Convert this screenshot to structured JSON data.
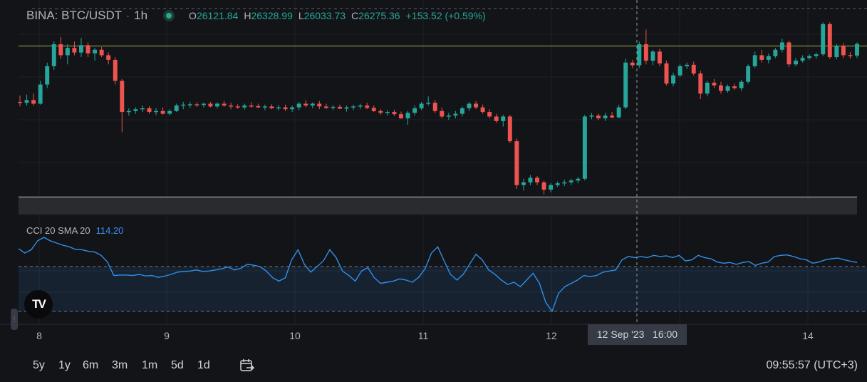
{
  "legend": {
    "symbol": "BINA: BTC/USDT",
    "separator": "·",
    "timeframe": "1h",
    "open_label": "O",
    "open": "26121.84",
    "high_label": "H",
    "high": "26328.99",
    "low_label": "L",
    "low": "26033.73",
    "close_label": "C",
    "close": "26275.36",
    "change": "+153.52 (+0.59%)"
  },
  "indicator": {
    "name": "CCI 20 SMA 20",
    "value": "114.20"
  },
  "logo": {
    "text": "TV"
  },
  "x_axis": {
    "labels": [
      "8",
      "9",
      "10",
      "11",
      "12",
      "14"
    ]
  },
  "crosshair": {
    "date": "12 Sep '23",
    "time": "16:00"
  },
  "bottom": {
    "ranges": [
      "5y",
      "1y",
      "6m",
      "3m",
      "1m",
      "5d",
      "1d"
    ],
    "clock": "09:55:57 (UTC+3)"
  },
  "colors": {
    "up": "#26a69a",
    "down": "#ef5350",
    "cci": "#2f8fea",
    "price_line": "#d4e157",
    "background": "#131417"
  },
  "icons": {
    "live": "live-dot-icon",
    "calendar": "calendar-go-to-icon",
    "handle": "panel-handle-icon"
  },
  "chart_data": [
    {
      "type": "candlestick",
      "title": "BINA: BTC/USDT 1h",
      "x": [
        "8",
        "9",
        "10",
        "11",
        "12",
        "14"
      ],
      "ohlc_last": {
        "open": 26121.84,
        "high": 26328.99,
        "low": 26033.73,
        "close": 26275.36
      },
      "candles": [
        [
          25945,
          25980,
          25920,
          25940
        ],
        [
          25940,
          25985,
          25925,
          25955
        ],
        [
          25955,
          25990,
          25925,
          25935
        ],
        [
          25935,
          26060,
          25930,
          26040
        ],
        [
          26040,
          26160,
          26020,
          26140
        ],
        [
          26140,
          26275,
          26120,
          26260
        ],
        [
          26260,
          26300,
          26180,
          26200
        ],
        [
          26200,
          26260,
          26150,
          26240
        ],
        [
          26240,
          26275,
          26200,
          26215
        ],
        [
          26215,
          26295,
          26190,
          26255
        ],
        [
          26255,
          26270,
          26190,
          26210
        ],
        [
          26210,
          26240,
          26170,
          26230
        ],
        [
          26230,
          26245,
          26190,
          26200
        ],
        [
          26200,
          26215,
          26150,
          26175
        ],
        [
          26175,
          26190,
          26040,
          26060
        ],
        [
          26060,
          26070,
          25780,
          25890
        ],
        [
          25890,
          25910,
          25870,
          25895
        ],
        [
          25895,
          25915,
          25880,
          25905
        ],
        [
          25905,
          25925,
          25890,
          25910
        ],
        [
          25910,
          25922,
          25880,
          25890
        ],
        [
          25890,
          25910,
          25872,
          25895
        ],
        [
          25895,
          25915,
          25875,
          25880
        ],
        [
          25880,
          25905,
          25870,
          25895
        ],
        [
          25895,
          25935,
          25890,
          25925
        ],
        [
          25925,
          25945,
          25905,
          25930
        ],
        [
          25930,
          25945,
          25912,
          25932
        ],
        [
          25932,
          25942,
          25918,
          25928
        ],
        [
          25928,
          25940,
          25915,
          25935
        ],
        [
          25935,
          25945,
          25915,
          25920
        ],
        [
          25920,
          25942,
          25910,
          25935
        ],
        [
          25935,
          25950,
          25918,
          25925
        ],
        [
          25925,
          25940,
          25905,
          25920
        ],
        [
          25920,
          25932,
          25908,
          25915
        ],
        [
          25915,
          25935,
          25903,
          25925
        ],
        [
          25925,
          25942,
          25912,
          25922
        ],
        [
          25922,
          25935,
          25910,
          25915
        ],
        [
          25915,
          25930,
          25900,
          25920
        ],
        [
          25920,
          25932,
          25905,
          25910
        ],
        [
          25910,
          25928,
          25898,
          25915
        ],
        [
          25915,
          25930,
          25895,
          25905
        ],
        [
          25905,
          25925,
          25890,
          25915
        ],
        [
          25915,
          25945,
          25900,
          25935
        ],
        [
          25935,
          25955,
          25915,
          25925
        ],
        [
          25925,
          25942,
          25910,
          25935
        ],
        [
          25935,
          25950,
          25905,
          25920
        ],
        [
          25920,
          25935,
          25905,
          25912
        ],
        [
          25912,
          25928,
          25900,
          25918
        ],
        [
          25918,
          25930,
          25905,
          25908
        ],
        [
          25908,
          25925,
          25892,
          25915
        ],
        [
          25915,
          25930,
          25900,
          25920
        ],
        [
          25920,
          25935,
          25905,
          25925
        ],
        [
          25925,
          25940,
          25905,
          25912
        ],
        [
          25912,
          25925,
          25890,
          25895
        ],
        [
          25895,
          25905,
          25875,
          25885
        ],
        [
          25885,
          25902,
          25870,
          25890
        ],
        [
          25890,
          25902,
          25868,
          25878
        ],
        [
          25878,
          25892,
          25852,
          25855
        ],
        [
          25855,
          25895,
          25820,
          25885
        ],
        [
          25885,
          25925,
          25870,
          25910
        ],
        [
          25910,
          25945,
          25900,
          25935
        ],
        [
          25935,
          25975,
          25925,
          25940
        ],
        [
          25940,
          25955,
          25885,
          25895
        ],
        [
          25895,
          25915,
          25855,
          25865
        ],
        [
          25865,
          25885,
          25848,
          25870
        ],
        [
          25870,
          25895,
          25855,
          25880
        ],
        [
          25880,
          25920,
          25865,
          25910
        ],
        [
          25910,
          25945,
          25895,
          25935
        ],
        [
          25935,
          25950,
          25905,
          25915
        ],
        [
          25915,
          25930,
          25880,
          25890
        ],
        [
          25890,
          25905,
          25855,
          25865
        ],
        [
          25865,
          25880,
          25830,
          25840
        ],
        [
          25840,
          25875,
          25810,
          25865
        ],
        [
          25865,
          25875,
          25720,
          25730
        ],
        [
          25730,
          25745,
          25470,
          25490
        ],
        [
          25490,
          25525,
          25460,
          25505
        ],
        [
          25505,
          25545,
          25490,
          25530
        ],
        [
          25530,
          25540,
          25490,
          25505
        ],
        [
          25505,
          25515,
          25440,
          25465
        ],
        [
          25465,
          25500,
          25450,
          25490
        ],
        [
          25490,
          25510,
          25480,
          25500
        ],
        [
          25500,
          25520,
          25485,
          25505
        ],
        [
          25505,
          25525,
          25490,
          25515
        ],
        [
          25515,
          25535,
          25500,
          25525
        ],
        [
          25525,
          25875,
          25515,
          25865
        ],
        [
          25865,
          25885,
          25850,
          25870
        ],
        [
          25870,
          25880,
          25845,
          25855
        ],
        [
          25855,
          25885,
          25840,
          25870
        ],
        [
          25870,
          25890,
          25855,
          25860
        ],
        [
          25860,
          25930,
          25855,
          25915
        ],
        [
          25915,
          26180,
          25905,
          26160
        ],
        [
          26160,
          26175,
          26130,
          26145
        ],
        [
          26145,
          26275,
          26130,
          26260
        ],
        [
          26260,
          26340,
          26150,
          26170
        ],
        [
          26170,
          26230,
          26145,
          26220
        ],
        [
          26220,
          26235,
          26140,
          26155
        ],
        [
          26155,
          26170,
          26035,
          26045
        ],
        [
          26045,
          26105,
          26030,
          26090
        ],
        [
          26090,
          26150,
          26080,
          26140
        ],
        [
          26140,
          26160,
          26125,
          26148
        ],
        [
          26148,
          26165,
          26090,
          26100
        ],
        [
          26100,
          26115,
          25960,
          25990
        ],
        [
          25990,
          26060,
          25975,
          26050
        ],
        [
          26050,
          26070,
          26020,
          26035
        ],
        [
          26035,
          26055,
          25990,
          26005
        ],
        [
          26005,
          26040,
          25995,
          26030
        ],
        [
          26030,
          26045,
          26010,
          26020
        ],
        [
          26020,
          26065,
          26005,
          26055
        ],
        [
          26055,
          26150,
          26045,
          26140
        ],
        [
          26140,
          26220,
          26130,
          26200
        ],
        [
          26200,
          26230,
          26160,
          26175
        ],
        [
          26175,
          26210,
          26155,
          26195
        ],
        [
          26195,
          26240,
          26185,
          26230
        ],
        [
          26230,
          26290,
          26215,
          26270
        ],
        [
          26270,
          26280,
          26135,
          26150
        ],
        [
          26150,
          26185,
          26140,
          26170
        ],
        [
          26170,
          26200,
          26160,
          26185
        ],
        [
          26185,
          26205,
          26175,
          26195
        ],
        [
          26195,
          26215,
          26180,
          26205
        ],
        [
          26205,
          26380,
          26195,
          26370
        ],
        [
          26370,
          26380,
          26180,
          26190
        ],
        [
          26190,
          26262,
          26178,
          26250
        ],
        [
          26250,
          26265,
          26185,
          26200
        ],
        [
          26200,
          26218,
          26180,
          26198
        ],
        [
          26198,
          26270,
          26185,
          26262
        ]
      ],
      "price_line": 26250,
      "crosshair_at": "12 Sep '23 16:00"
    },
    {
      "type": "line",
      "title": "CCI 20 SMA 20",
      "series": [
        {
          "name": "CCI 20",
          "values": [
            180,
            160,
            175,
            215,
            230,
            215,
            205,
            195,
            188,
            176,
            175,
            168,
            165,
            150,
            120,
            60,
            62,
            62,
            60,
            65,
            58,
            60,
            52,
            57,
            65,
            75,
            78,
            80,
            85,
            78,
            80,
            85,
            90,
            98,
            85,
            92,
            110,
            106,
            100,
            80,
            50,
            35,
            50,
            130,
            175,
            110,
            75,
            100,
            125,
            175,
            140,
            80,
            60,
            35,
            80,
            95,
            50,
            25,
            30,
            35,
            45,
            40,
            30,
            52,
            90,
            160,
            188,
            125,
            65,
            40,
            65,
            110,
            155,
            130,
            85,
            65,
            40,
            20,
            30,
            10,
            40,
            70,
            25,
            -60,
            -100,
            -20,
            10,
            25,
            40,
            60,
            55,
            60,
            75,
            80,
            85,
            130,
            145,
            140,
            145,
            140,
            150,
            145,
            148,
            140,
            150,
            125,
            130,
            150,
            140,
            135,
            120,
            115,
            118,
            110,
            118,
            122,
            105,
            115,
            120,
            145,
            150,
            152,
            145,
            135,
            130,
            115,
            120,
            130,
            135,
            138,
            130,
            124,
            118
          ]
        }
      ],
      "bands": [
        100,
        -100
      ]
    }
  ]
}
